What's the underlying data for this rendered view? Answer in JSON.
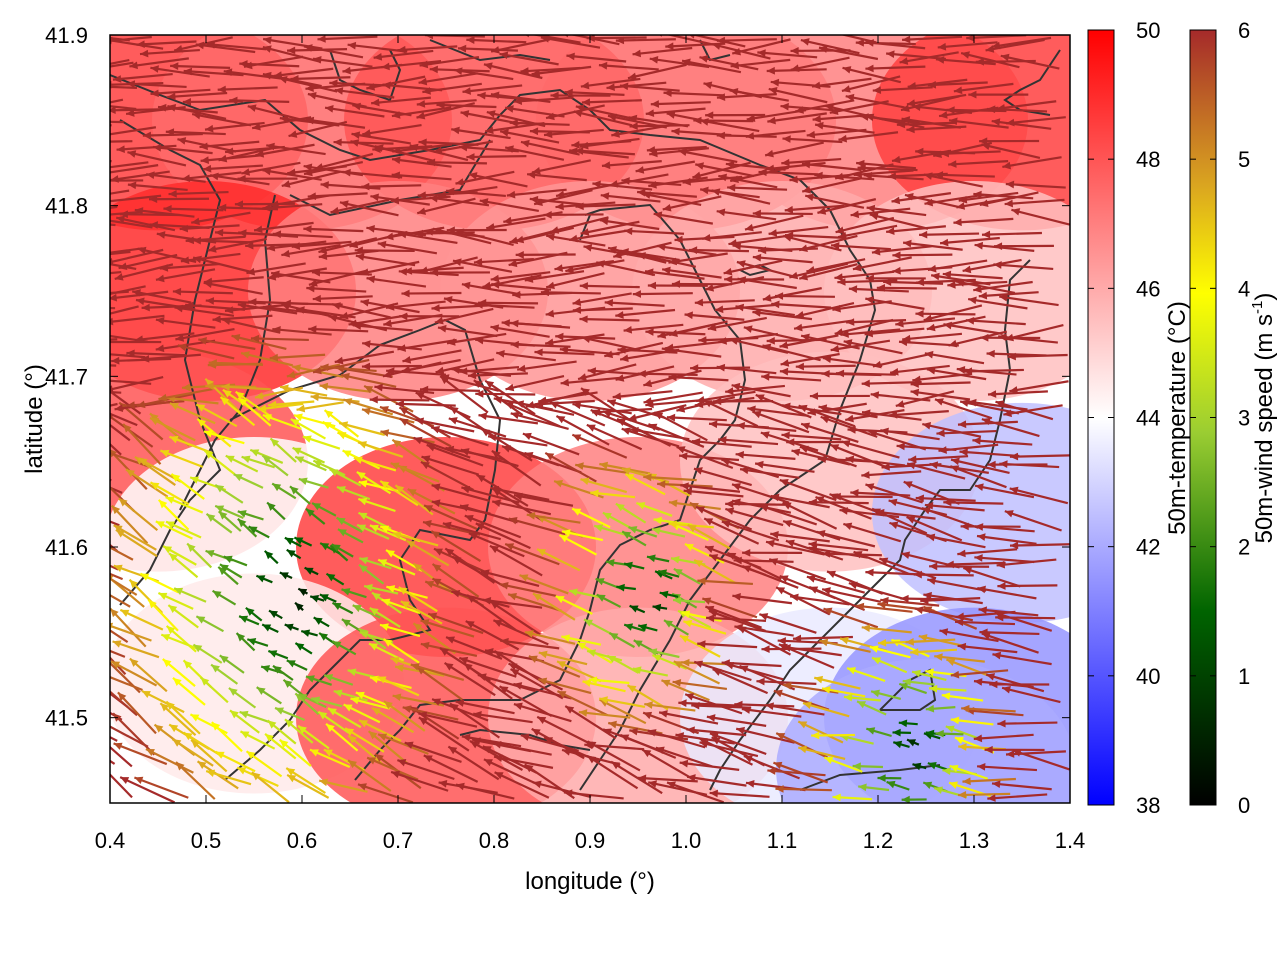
{
  "chart_data": {
    "type": "vector-field-heatmap",
    "xlabel": "longitude (°)",
    "ylabel": "latitude (°)",
    "xlim": [
      0.4,
      1.4
    ],
    "ylim": [
      41.45,
      41.9
    ],
    "x_ticks": [
      0.4,
      0.5,
      0.6,
      0.7,
      0.8,
      0.9,
      1.0,
      1.1,
      1.2,
      1.3,
      1.4
    ],
    "x_tick_labels": [
      "0.4",
      "0.5",
      "0.6",
      "0.7",
      "0.8",
      "0.9",
      "1.0",
      "1.1",
      "1.2",
      "1.3",
      "1.4"
    ],
    "y_ticks": [
      41.5,
      41.6,
      41.7,
      41.8,
      41.9
    ],
    "y_tick_labels": [
      "41.5",
      "41.6",
      "41.7",
      "41.8",
      "41.9"
    ],
    "temperature_colorbar": {
      "label": "50m-temperature (°C)",
      "range": [
        38,
        50
      ],
      "ticks": [
        38,
        40,
        42,
        44,
        46,
        48,
        50
      ],
      "tick_labels": [
        "38",
        "40",
        "42",
        "44",
        "46",
        "48",
        "50"
      ],
      "colors": [
        "#0000ff",
        "#ffffff",
        "#ff0000"
      ]
    },
    "wind_colorbar": {
      "label": "50m-wind speed (m s",
      "label_sup": "-1",
      "label_end": ")",
      "range": [
        0,
        6
      ],
      "ticks": [
        0,
        1,
        2,
        3,
        4,
        5,
        6
      ],
      "tick_labels": [
        "0",
        "1",
        "2",
        "3",
        "4",
        "5",
        "6"
      ],
      "colors": [
        "#000000",
        "#006400",
        "#9acd32",
        "#ffff00",
        "#daa520",
        "#b8860b",
        "#a52a2a"
      ]
    },
    "temperature_field": [
      {
        "lon": 0.45,
        "lat": 41.85,
        "value": 48.5
      },
      {
        "lon": 0.6,
        "lat": 41.85,
        "value": 47.5
      },
      {
        "lon": 0.8,
        "lat": 41.85,
        "value": 48
      },
      {
        "lon": 1.0,
        "lat": 41.85,
        "value": 47.5
      },
      {
        "lon": 1.2,
        "lat": 41.85,
        "value": 47
      },
      {
        "lon": 1.35,
        "lat": 41.85,
        "value": 48.5
      },
      {
        "lon": 0.5,
        "lat": 41.75,
        "value": 49
      },
      {
        "lon": 0.7,
        "lat": 41.75,
        "value": 47
      },
      {
        "lon": 0.9,
        "lat": 41.75,
        "value": 46.5
      },
      {
        "lon": 1.1,
        "lat": 41.75,
        "value": 46
      },
      {
        "lon": 1.3,
        "lat": 41.75,
        "value": 45.5
      },
      {
        "lon": 0.45,
        "lat": 41.65,
        "value": 48
      },
      {
        "lon": 0.55,
        "lat": 41.6,
        "value": 44
      },
      {
        "lon": 0.75,
        "lat": 41.6,
        "value": 48.5
      },
      {
        "lon": 0.95,
        "lat": 41.6,
        "value": 47
      },
      {
        "lon": 1.15,
        "lat": 41.65,
        "value": 45.5
      },
      {
        "lon": 1.35,
        "lat": 41.62,
        "value": 42.5
      },
      {
        "lon": 0.55,
        "lat": 41.52,
        "value": 44.5
      },
      {
        "lon": 0.75,
        "lat": 41.5,
        "value": 48
      },
      {
        "lon": 0.95,
        "lat": 41.5,
        "value": 46
      },
      {
        "lon": 1.15,
        "lat": 41.5,
        "value": 43.5
      },
      {
        "lon": 1.3,
        "lat": 41.5,
        "value": 41.5
      },
      {
        "lon": 1.25,
        "lat": 41.47,
        "value": 42
      }
    ],
    "wind_vectors_note_dominant": "northern and central area: strong (~6 m/s) westward winds; south-west low-wind area near lon 0.6, lat 41.57"
  }
}
